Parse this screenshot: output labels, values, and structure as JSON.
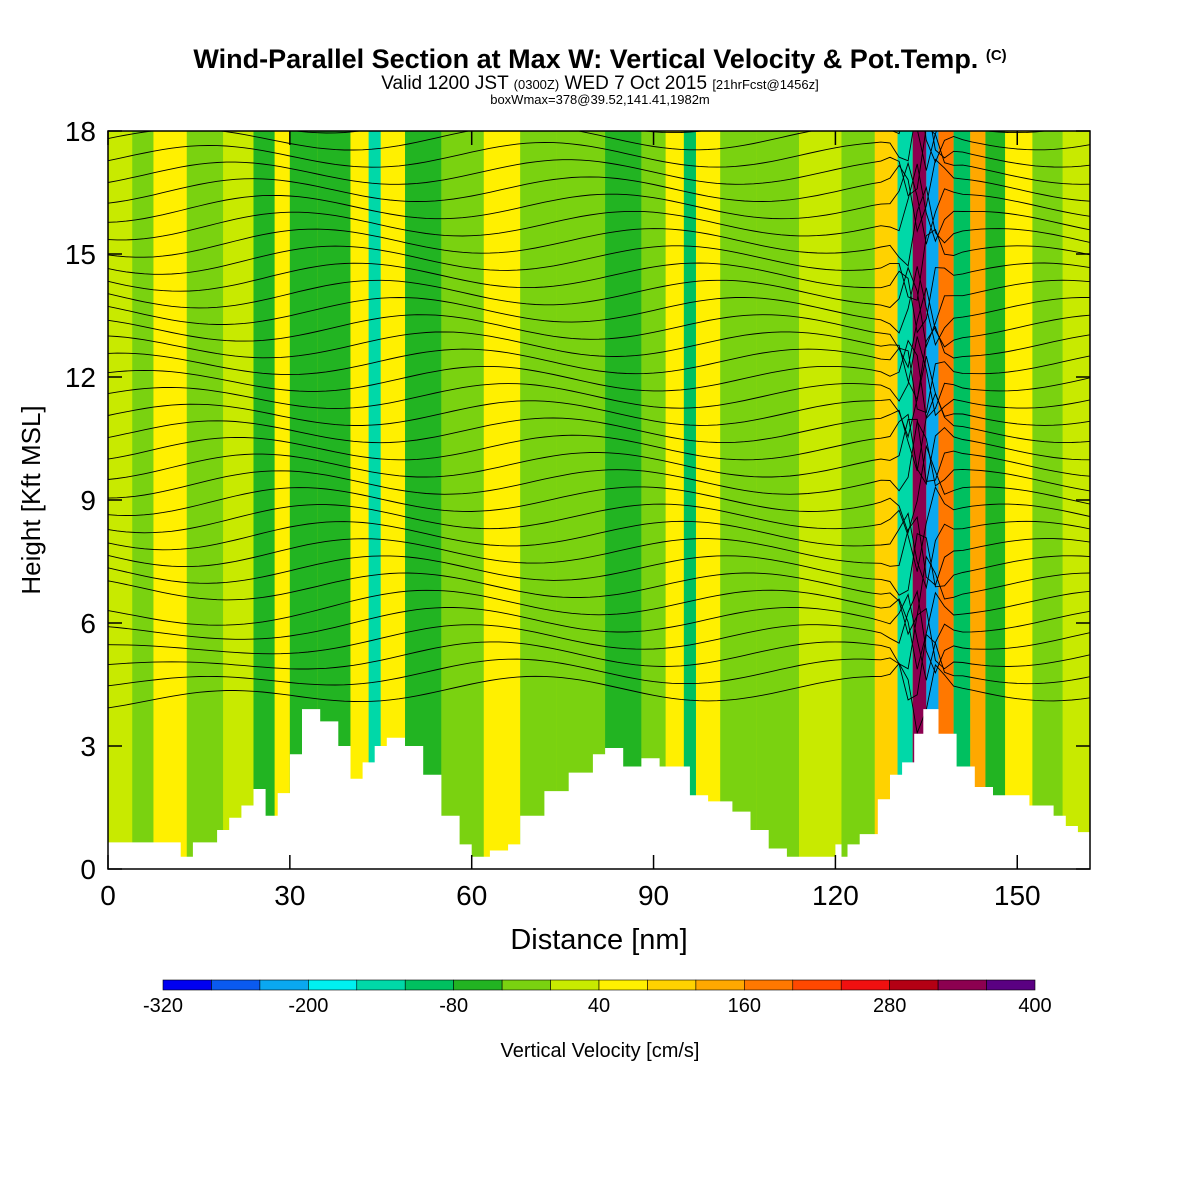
{
  "header": {
    "title_main": "Wind-Parallel Section at Max W: Vertical Velocity & Pot.Temp.",
    "title_copyright": "(C)",
    "valid_prefix": "Valid 1200 JST",
    "valid_utc": "(0300Z)",
    "valid_date": "WED 7 Oct 2015",
    "forecast_tag": "[21hrFcst@1456z]",
    "box_info": "boxWmax=378@39.52,141.41,1982m"
  },
  "chart_data": {
    "type": "heatmap",
    "title": "Wind-Parallel Section at Max W: Vertical Velocity & Pot.Temp.",
    "xlabel": "Distance [nm]",
    "ylabel": "Height [Kft MSL]",
    "xlim": [
      0,
      162
    ],
    "ylim": [
      0,
      18
    ],
    "x_ticks": [
      0,
      30,
      60,
      90,
      120,
      150
    ],
    "y_ticks": [
      0,
      3,
      6,
      9,
      12,
      15,
      18
    ],
    "colorbar": {
      "label": "Vertical Velocity [cm/s]",
      "levels": [
        -320,
        -280,
        -240,
        -200,
        -160,
        -120,
        -80,
        -40,
        0,
        40,
        80,
        120,
        160,
        200,
        240,
        280,
        320,
        360,
        400
      ],
      "tick_labels": [
        "-320",
        "-200",
        "-80",
        "40",
        "160",
        "280",
        "400"
      ],
      "colors": [
        "#0000f0",
        "#0a5af0",
        "#0aa8f0",
        "#00f0f0",
        "#00d8a8",
        "#00c060",
        "#22b422",
        "#7ad210",
        "#c8ea00",
        "#fff000",
        "#ffd200",
        "#ffa800",
        "#ff7800",
        "#ff4800",
        "#f01010",
        "#b40014",
        "#8c0050",
        "#5a0082"
      ]
    },
    "background_w_cms": 10,
    "w_columns": [
      {
        "x": 3,
        "w": 20
      },
      {
        "x": 5,
        "w": -20
      },
      {
        "x": 10,
        "w": 50
      },
      {
        "x": 16,
        "w": -40
      },
      {
        "x": 22,
        "w": 30
      },
      {
        "x": 26,
        "w": -50
      },
      {
        "x": 29,
        "w": 60
      },
      {
        "x": 31,
        "w": -70
      },
      {
        "x": 38,
        "w": -60
      },
      {
        "x": 42,
        "w": 50
      },
      {
        "x": 44,
        "w": -130
      },
      {
        "x": 46,
        "w": 40
      },
      {
        "x": 52,
        "w": -50
      },
      {
        "x": 58,
        "w": -40
      },
      {
        "x": 66,
        "w": 50
      },
      {
        "x": 70,
        "w": -40
      },
      {
        "x": 78,
        "w": -30
      },
      {
        "x": 86,
        "w": -50
      },
      {
        "x": 90,
        "w": -40
      },
      {
        "x": 94,
        "w": 70
      },
      {
        "x": 96,
        "w": -110
      },
      {
        "x": 98,
        "w": 50
      },
      {
        "x": 104,
        "w": -40
      },
      {
        "x": 110,
        "w": -30
      },
      {
        "x": 118,
        "w": 20
      },
      {
        "x": 124,
        "w": -30
      },
      {
        "x": 129,
        "w": 100
      },
      {
        "x": 131.5,
        "w": -130
      },
      {
        "x": 134,
        "w": 330
      },
      {
        "x": 136,
        "w": -230
      },
      {
        "x": 138,
        "w": 180
      },
      {
        "x": 141,
        "w": -100
      },
      {
        "x": 143.5,
        "w": 130
      },
      {
        "x": 146,
        "w": -60
      },
      {
        "x": 150,
        "w": 40
      },
      {
        "x": 155,
        "w": -30
      },
      {
        "x": 160,
        "w": 20
      }
    ],
    "terrain": [
      {
        "x": 0,
        "h": 0.65
      },
      {
        "x": 10,
        "h": 0.65
      },
      {
        "x": 12,
        "h": 0.3
      },
      {
        "x": 14,
        "h": 0.65
      },
      {
        "x": 18,
        "h": 0.95
      },
      {
        "x": 20,
        "h": 1.25
      },
      {
        "x": 22,
        "h": 1.55
      },
      {
        "x": 24,
        "h": 1.95
      },
      {
        "x": 26,
        "h": 1.3
      },
      {
        "x": 28,
        "h": 1.85
      },
      {
        "x": 30,
        "h": 2.8
      },
      {
        "x": 32,
        "h": 3.9
      },
      {
        "x": 35,
        "h": 3.6
      },
      {
        "x": 38,
        "h": 3.0
      },
      {
        "x": 40,
        "h": 2.2
      },
      {
        "x": 42,
        "h": 2.6
      },
      {
        "x": 44,
        "h": 3.0
      },
      {
        "x": 46,
        "h": 3.2
      },
      {
        "x": 49,
        "h": 3.0
      },
      {
        "x": 52,
        "h": 2.3
      },
      {
        "x": 55,
        "h": 1.3
      },
      {
        "x": 58,
        "h": 0.6
      },
      {
        "x": 60,
        "h": 0.3
      },
      {
        "x": 63,
        "h": 0.45
      },
      {
        "x": 66,
        "h": 0.6
      },
      {
        "x": 68,
        "h": 1.3
      },
      {
        "x": 72,
        "h": 1.9
      },
      {
        "x": 76,
        "h": 2.35
      },
      {
        "x": 80,
        "h": 2.8
      },
      {
        "x": 82,
        "h": 2.95
      },
      {
        "x": 85,
        "h": 2.5
      },
      {
        "x": 88,
        "h": 2.7
      },
      {
        "x": 91,
        "h": 2.5
      },
      {
        "x": 94,
        "h": 2.5
      },
      {
        "x": 96,
        "h": 1.8
      },
      {
        "x": 99,
        "h": 1.65
      },
      {
        "x": 103,
        "h": 1.4
      },
      {
        "x": 106,
        "h": 0.95
      },
      {
        "x": 109,
        "h": 0.5
      },
      {
        "x": 112,
        "h": 0.3
      },
      {
        "x": 118,
        "h": 0.3
      },
      {
        "x": 120,
        "h": 0.6
      },
      {
        "x": 121,
        "h": 0.3
      },
      {
        "x": 122,
        "h": 0.6
      },
      {
        "x": 124,
        "h": 0.85
      },
      {
        "x": 127,
        "h": 1.7
      },
      {
        "x": 129,
        "h": 2.3
      },
      {
        "x": 131,
        "h": 2.6
      },
      {
        "x": 133,
        "h": 3.3
      },
      {
        "x": 134.5,
        "h": 3.9
      },
      {
        "x": 137,
        "h": 3.3
      },
      {
        "x": 140,
        "h": 2.5
      },
      {
        "x": 143,
        "h": 2.0
      },
      {
        "x": 146,
        "h": 1.8
      },
      {
        "x": 152,
        "h": 1.55
      },
      {
        "x": 156,
        "h": 1.3
      },
      {
        "x": 158,
        "h": 1.05
      },
      {
        "x": 160,
        "h": 0.9
      },
      {
        "x": 162,
        "h": 0.9
      }
    ]
  }
}
